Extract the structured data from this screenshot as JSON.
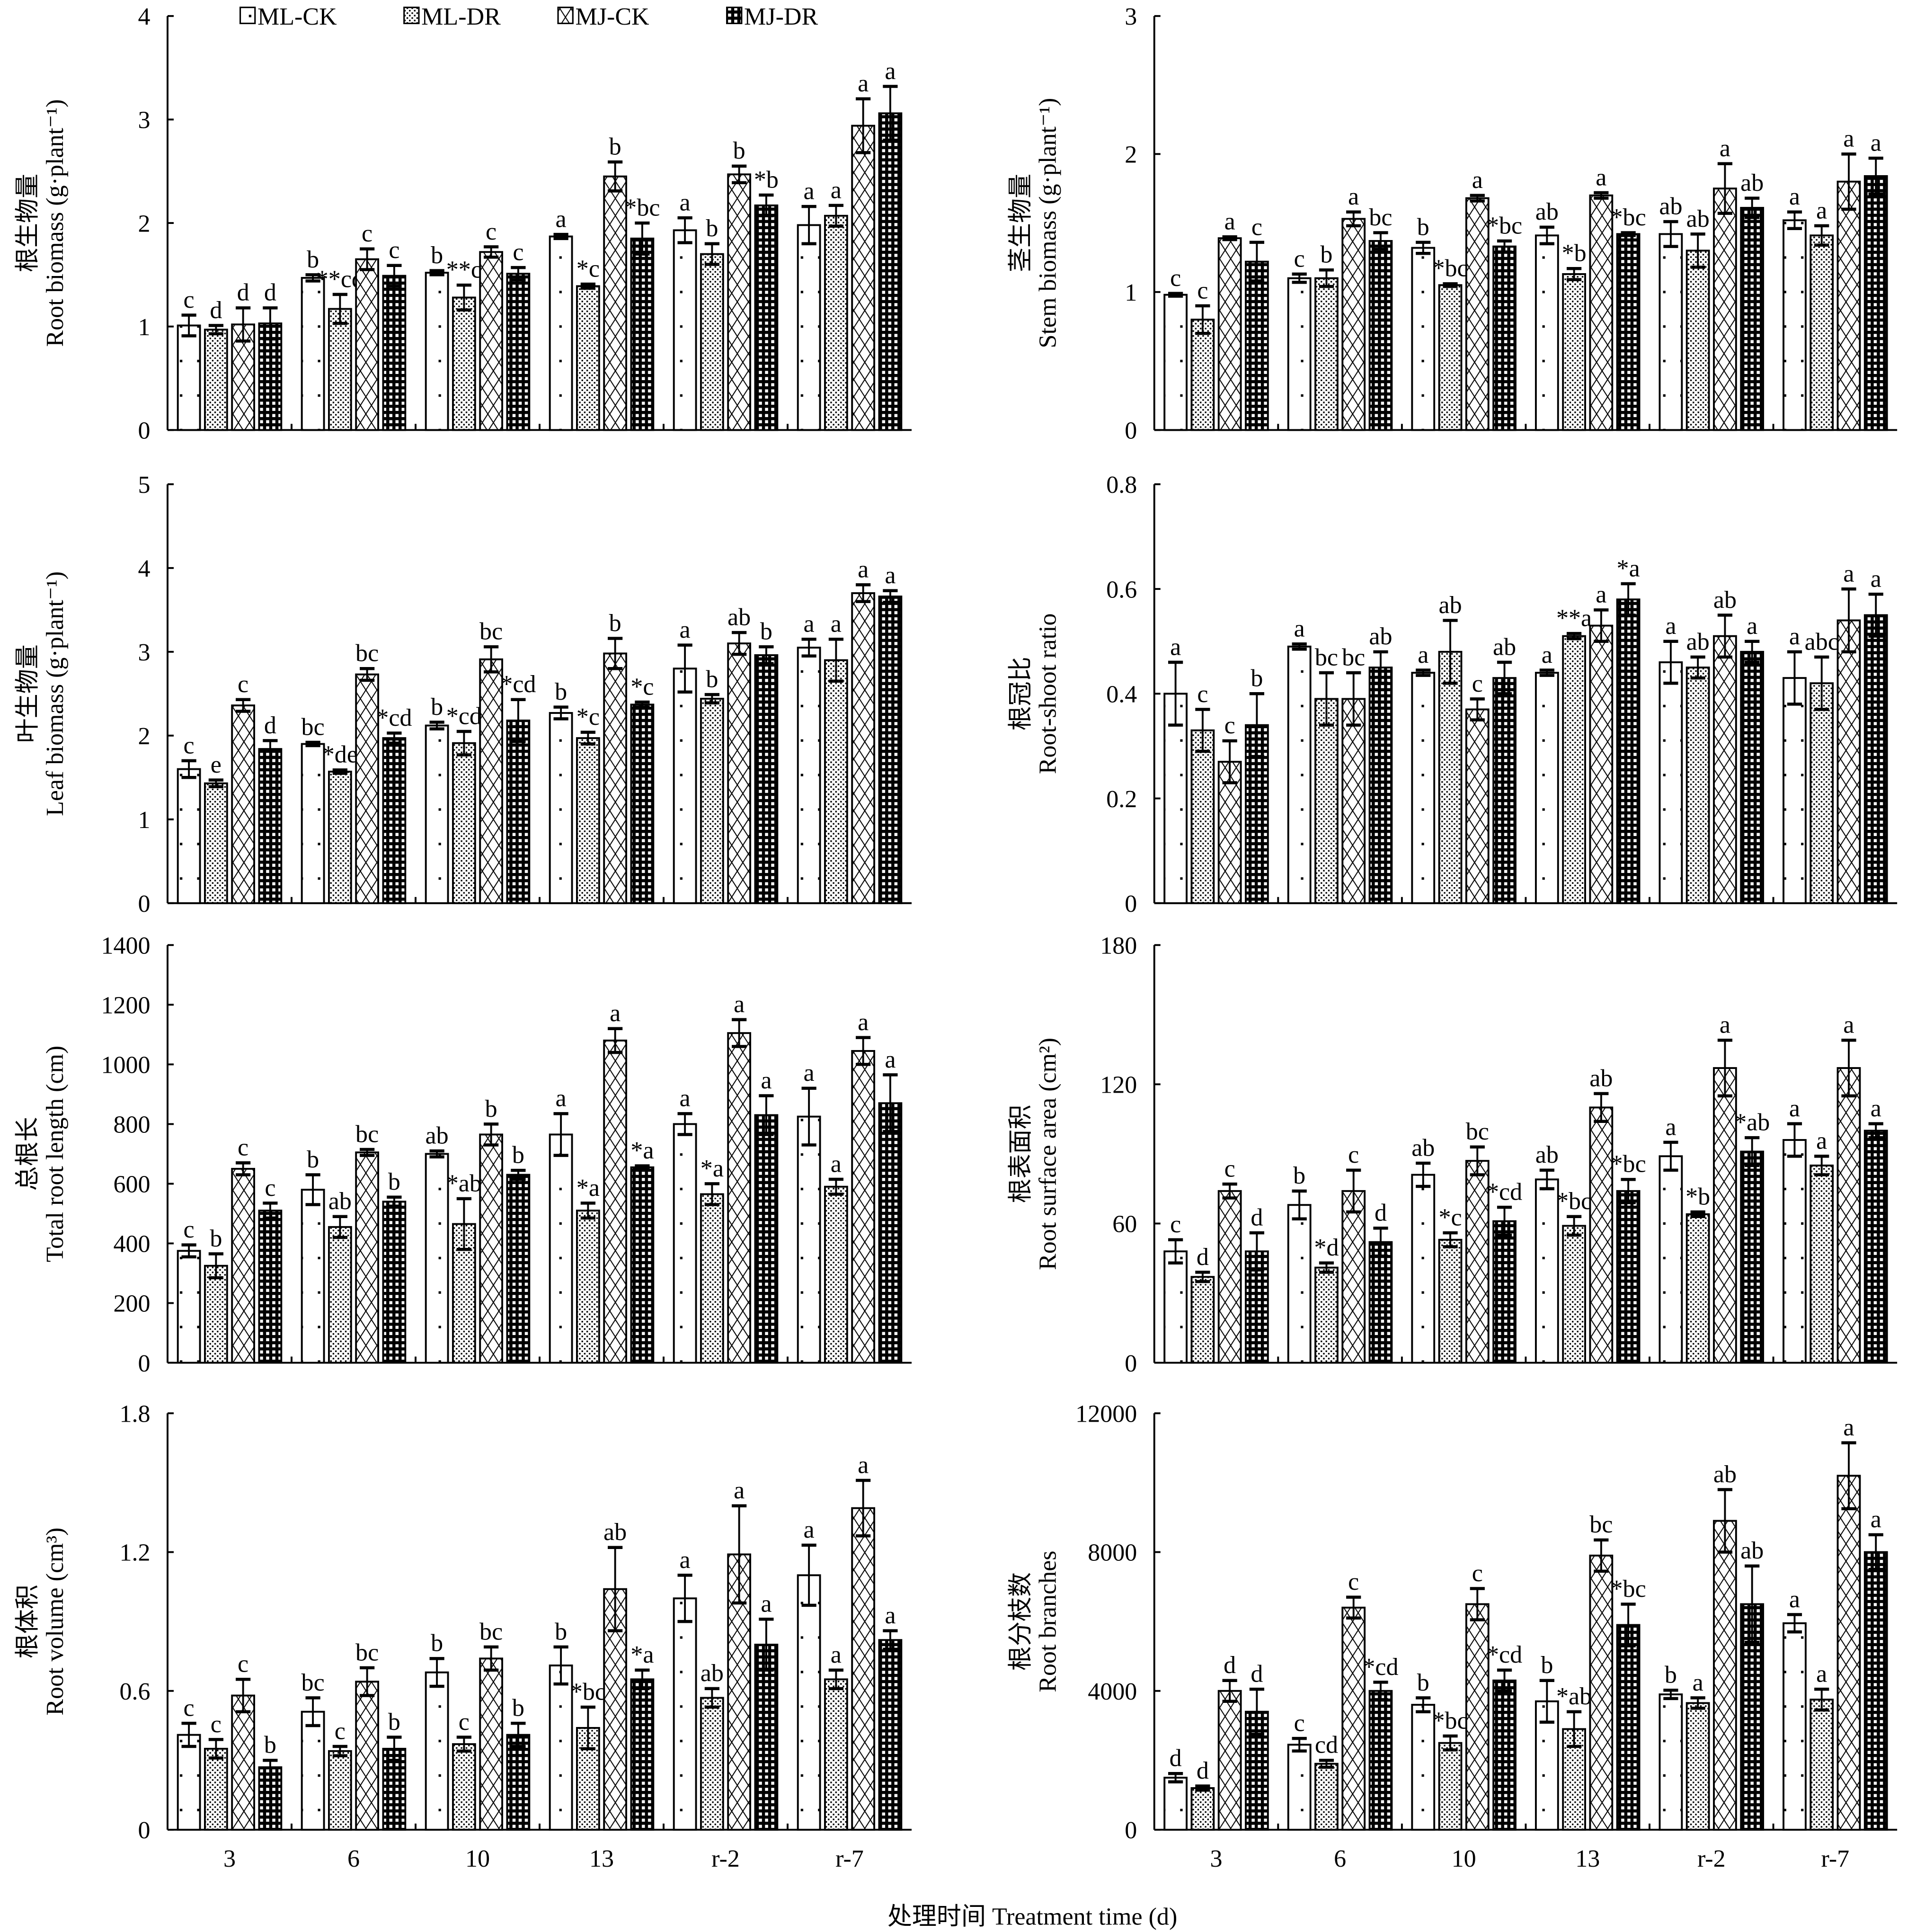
{
  "legend": [
    "ML-CK",
    "ML-DR",
    "MJ-CK",
    "MJ-DR"
  ],
  "x_title": "处理时间 Treatment time (d)",
  "categories": [
    "3",
    "6",
    "10",
    "13",
    "r-2",
    "r-7"
  ],
  "chart_data": [
    {
      "type": "bar",
      "ylabel_cn": "根生物量",
      "ylabel": "Root biomass (g·plant⁻¹)",
      "ylim": [
        0,
        4
      ],
      "ticks": [
        0,
        1,
        2,
        3,
        4
      ],
      "series": [
        {
          "name": "ML-CK",
          "values": [
            1.01,
            1.47,
            1.52,
            1.87,
            1.93,
            1.98
          ],
          "err": [
            0.1,
            0.03,
            0.02,
            0.02,
            0.12,
            0.18
          ],
          "sig": [
            "c",
            "b",
            "b",
            "a",
            "a",
            "a"
          ]
        },
        {
          "name": "ML-DR",
          "values": [
            0.97,
            1.17,
            1.28,
            1.39,
            1.7,
            2.07
          ],
          "err": [
            0.04,
            0.14,
            0.12,
            0.02,
            0.1,
            0.1
          ],
          "sig": [
            "d",
            "**cd",
            "**c",
            "*c",
            "b",
            "a"
          ]
        },
        {
          "name": "MJ-CK",
          "values": [
            1.02,
            1.65,
            1.72,
            2.45,
            2.47,
            2.94
          ],
          "err": [
            0.16,
            0.1,
            0.05,
            0.14,
            0.08,
            0.26
          ],
          "sig": [
            "d",
            "c",
            "c",
            "b",
            "b",
            "a"
          ]
        },
        {
          "name": "MJ-DR",
          "values": [
            1.03,
            1.49,
            1.51,
            1.85,
            2.17,
            3.06
          ],
          "err": [
            0.15,
            0.1,
            0.06,
            0.15,
            0.1,
            0.26
          ],
          "sig": [
            "d",
            "c",
            "c",
            "*bc",
            "*b",
            "a"
          ]
        }
      ]
    },
    {
      "type": "bar",
      "ylabel_cn": "茎生物量",
      "ylabel": "Stem biomass (g·plant⁻¹)",
      "ylim": [
        0,
        3
      ],
      "ticks": [
        0,
        1,
        2,
        3
      ],
      "series": [
        {
          "name": "ML-CK",
          "values": [
            0.98,
            1.1,
            1.32,
            1.41,
            1.42,
            1.52
          ],
          "err": [
            0.01,
            0.03,
            0.04,
            0.06,
            0.09,
            0.06
          ],
          "sig": [
            "c",
            "c",
            "b",
            "ab",
            "ab",
            "a"
          ]
        },
        {
          "name": "ML-DR",
          "values": [
            0.8,
            1.1,
            1.05,
            1.13,
            1.3,
            1.41
          ],
          "err": [
            0.1,
            0.06,
            0.01,
            0.04,
            0.12,
            0.07
          ],
          "sig": [
            "c",
            "b",
            "*bc",
            "*b",
            "ab",
            "a"
          ]
        },
        {
          "name": "MJ-CK",
          "values": [
            1.39,
            1.53,
            1.68,
            1.7,
            1.75,
            1.8
          ],
          "err": [
            0.01,
            0.05,
            0.02,
            0.02,
            0.18,
            0.2
          ],
          "sig": [
            "a",
            "a",
            "a",
            "a",
            "a",
            "a"
          ]
        },
        {
          "name": "MJ-DR",
          "values": [
            1.22,
            1.37,
            1.33,
            1.42,
            1.61,
            1.84
          ],
          "err": [
            0.14,
            0.06,
            0.04,
            0.01,
            0.07,
            0.13
          ],
          "sig": [
            "c",
            "bc",
            "*bc",
            "*bc",
            "ab",
            "a"
          ]
        }
      ]
    },
    {
      "type": "bar",
      "ylabel_cn": "叶生物量",
      "ylabel": "Leaf biomass (g·plant⁻¹)",
      "ylim": [
        0,
        5
      ],
      "ticks": [
        0,
        1,
        2,
        3,
        4,
        5
      ],
      "series": [
        {
          "name": "ML-CK",
          "values": [
            1.6,
            1.9,
            2.12,
            2.27,
            2.8,
            3.05
          ],
          "err": [
            0.1,
            0.02,
            0.04,
            0.07,
            0.28,
            0.1
          ],
          "sig": [
            "c",
            "bc",
            "b",
            "b",
            "a",
            "a"
          ]
        },
        {
          "name": "ML-DR",
          "values": [
            1.43,
            1.57,
            1.91,
            1.97,
            2.44,
            2.9
          ],
          "err": [
            0.04,
            0.02,
            0.14,
            0.07,
            0.05,
            0.25
          ],
          "sig": [
            "e",
            "*de",
            "*cd",
            "*c",
            "b",
            "a"
          ]
        },
        {
          "name": "MJ-CK",
          "values": [
            2.36,
            2.73,
            2.91,
            2.98,
            3.1,
            3.7
          ],
          "err": [
            0.07,
            0.07,
            0.15,
            0.18,
            0.13,
            0.1
          ],
          "sig": [
            "c",
            "bc",
            "bc",
            "b",
            "ab",
            "a"
          ]
        },
        {
          "name": "MJ-DR",
          "values": [
            1.84,
            1.97,
            2.18,
            2.37,
            2.96,
            3.66
          ],
          "err": [
            0.1,
            0.06,
            0.25,
            0.03,
            0.1,
            0.07
          ],
          "sig": [
            "d",
            "*cd",
            "*cd",
            "*c",
            "b",
            "a"
          ]
        }
      ]
    },
    {
      "type": "bar",
      "ylabel_cn": "根冠比",
      "ylabel": "Root-shoot ratio",
      "ylim": [
        0,
        0.8
      ],
      "ticks": [
        0,
        0.2,
        0.4,
        0.6,
        0.8
      ],
      "series": [
        {
          "name": "ML-CK",
          "values": [
            0.4,
            0.49,
            0.44,
            0.44,
            0.46,
            0.43
          ],
          "err": [
            0.06,
            0.005,
            0.005,
            0.005,
            0.04,
            0.05
          ],
          "sig": [
            "a",
            "a",
            "a",
            "a",
            "a",
            "a"
          ]
        },
        {
          "name": "ML-DR",
          "values": [
            0.33,
            0.39,
            0.48,
            0.51,
            0.45,
            0.42
          ],
          "err": [
            0.04,
            0.05,
            0.06,
            0.005,
            0.02,
            0.05
          ],
          "sig": [
            "c",
            "bc",
            "ab",
            "**a",
            "ab",
            "abc"
          ]
        },
        {
          "name": "MJ-CK",
          "values": [
            0.27,
            0.39,
            0.37,
            0.53,
            0.51,
            0.54
          ],
          "err": [
            0.04,
            0.05,
            0.02,
            0.03,
            0.04,
            0.06
          ],
          "sig": [
            "c",
            "bc",
            "c",
            "a",
            "ab",
            "a"
          ]
        },
        {
          "name": "MJ-DR",
          "values": [
            0.34,
            0.45,
            0.43,
            0.58,
            0.48,
            0.55
          ],
          "err": [
            0.06,
            0.03,
            0.03,
            0.03,
            0.02,
            0.04
          ],
          "sig": [
            "b",
            "ab",
            "ab",
            "*a",
            "a",
            "a"
          ]
        }
      ]
    },
    {
      "type": "bar",
      "ylabel_cn": "总根长",
      "ylabel": "Total root length (cm)",
      "ylim": [
        0,
        1400
      ],
      "ticks": [
        0,
        200,
        400,
        600,
        800,
        1000,
        1200,
        1400
      ],
      "series": [
        {
          "name": "ML-CK",
          "values": [
            375,
            580,
            700,
            765,
            800,
            825
          ],
          "err": [
            20,
            50,
            10,
            70,
            35,
            95
          ],
          "sig": [
            "c",
            "b",
            "ab",
            "a",
            "a",
            "a"
          ]
        },
        {
          "name": "ML-DR",
          "values": [
            325,
            455,
            465,
            510,
            565,
            590
          ],
          "err": [
            40,
            35,
            85,
            25,
            35,
            25
          ],
          "sig": [
            "b",
            "ab",
            "*ab",
            "*a",
            "*a",
            "a"
          ]
        },
        {
          "name": "MJ-CK",
          "values": [
            650,
            705,
            765,
            1080,
            1105,
            1045
          ],
          "err": [
            20,
            10,
            35,
            40,
            45,
            45
          ],
          "sig": [
            "c",
            "bc",
            "b",
            "a",
            "a",
            "a"
          ]
        },
        {
          "name": "MJ-DR",
          "values": [
            510,
            540,
            630,
            655,
            830,
            870
          ],
          "err": [
            25,
            15,
            15,
            5,
            65,
            95
          ],
          "sig": [
            "c",
            "b",
            "b",
            "*a",
            "a",
            "a"
          ]
        }
      ]
    },
    {
      "type": "bar",
      "ylabel_cn": "根表面积",
      "ylabel": "Root surface area (cm²)",
      "ylim": [
        0,
        180
      ],
      "ticks": [
        0,
        60,
        120,
        180
      ],
      "series": [
        {
          "name": "ML-CK",
          "values": [
            48,
            68,
            81,
            79,
            89,
            96
          ],
          "err": [
            5,
            6,
            5,
            4,
            6,
            7
          ],
          "sig": [
            "c",
            "b",
            "ab",
            "ab",
            "a",
            "a"
          ]
        },
        {
          "name": "ML-DR",
          "values": [
            37,
            41,
            53,
            59,
            64,
            85
          ],
          "err": [
            2,
            2,
            3,
            4,
            1,
            4
          ],
          "sig": [
            "d",
            "*d",
            "*c",
            "*bc",
            "*b",
            "a"
          ]
        },
        {
          "name": "MJ-CK",
          "values": [
            74,
            74,
            87,
            110,
            127,
            127
          ],
          "err": [
            3,
            9,
            6,
            6,
            12,
            12
          ],
          "sig": [
            "c",
            "c",
            "bc",
            "ab",
            "a",
            "a"
          ]
        },
        {
          "name": "MJ-DR",
          "values": [
            48,
            52,
            61,
            74,
            91,
            100
          ],
          "err": [
            8,
            6,
            6,
            5,
            6,
            3
          ],
          "sig": [
            "d",
            "d",
            "*cd",
            "*bc",
            "*ab",
            "a"
          ]
        }
      ]
    },
    {
      "type": "bar",
      "ylabel_cn": "根体积",
      "ylabel": "Root volume (cm³)",
      "ylim": [
        0,
        1.8
      ],
      "ticks": [
        0,
        0.6,
        1.2,
        1.8
      ],
      "series": [
        {
          "name": "ML-CK",
          "values": [
            0.41,
            0.51,
            0.68,
            0.71,
            1.0,
            1.1
          ],
          "err": [
            0.05,
            0.06,
            0.06,
            0.08,
            0.1,
            0.13
          ],
          "sig": [
            "c",
            "bc",
            "b",
            "b",
            "a",
            "a"
          ]
        },
        {
          "name": "ML-DR",
          "values": [
            0.35,
            0.34,
            0.37,
            0.44,
            0.57,
            0.65
          ],
          "err": [
            0.04,
            0.02,
            0.03,
            0.09,
            0.04,
            0.04
          ],
          "sig": [
            "c",
            "c",
            "c",
            "*bc",
            "ab",
            "a"
          ]
        },
        {
          "name": "MJ-CK",
          "values": [
            0.58,
            0.64,
            0.74,
            1.04,
            1.19,
            1.39
          ],
          "err": [
            0.07,
            0.06,
            0.05,
            0.18,
            0.21,
            0.12
          ],
          "sig": [
            "c",
            "bc",
            "bc",
            "ab",
            "a",
            "a"
          ]
        },
        {
          "name": "MJ-DR",
          "values": [
            0.27,
            0.35,
            0.41,
            0.65,
            0.8,
            0.82
          ],
          "err": [
            0.03,
            0.05,
            0.05,
            0.04,
            0.11,
            0.04
          ],
          "sig": [
            "b",
            "b",
            "b",
            "*a",
            "a",
            "a"
          ]
        }
      ]
    },
    {
      "type": "bar",
      "ylabel_cn": "根分枝数",
      "ylabel": "Root branches",
      "ylim": [
        0,
        12000
      ],
      "ticks": [
        0,
        4000,
        8000,
        12000
      ],
      "series": [
        {
          "name": "ML-CK",
          "values": [
            1500,
            2450,
            3600,
            3700,
            3900,
            5950
          ],
          "err": [
            120,
            180,
            200,
            600,
            120,
            250
          ],
          "sig": [
            "d",
            "c",
            "b",
            "b",
            "b",
            "a"
          ]
        },
        {
          "name": "ML-DR",
          "values": [
            1200,
            1900,
            2500,
            2900,
            3650,
            3750
          ],
          "err": [
            60,
            100,
            200,
            500,
            150,
            300
          ],
          "sig": [
            "d",
            "cd",
            "*bc",
            "*ab",
            "a",
            "a"
          ]
        },
        {
          "name": "MJ-CK",
          "values": [
            4000,
            6400,
            6500,
            7900,
            8900,
            10200
          ],
          "err": [
            300,
            300,
            450,
            450,
            900,
            950
          ],
          "sig": [
            "d",
            "c",
            "c",
            "bc",
            "ab",
            "a"
          ]
        },
        {
          "name": "MJ-DR",
          "values": [
            3400,
            4000,
            4300,
            5900,
            6500,
            8000
          ],
          "err": [
            650,
            250,
            300,
            600,
            1100,
            500
          ],
          "sig": [
            "d",
            "*cd",
            "*cd",
            "*bc",
            "ab",
            "a"
          ]
        }
      ]
    }
  ]
}
